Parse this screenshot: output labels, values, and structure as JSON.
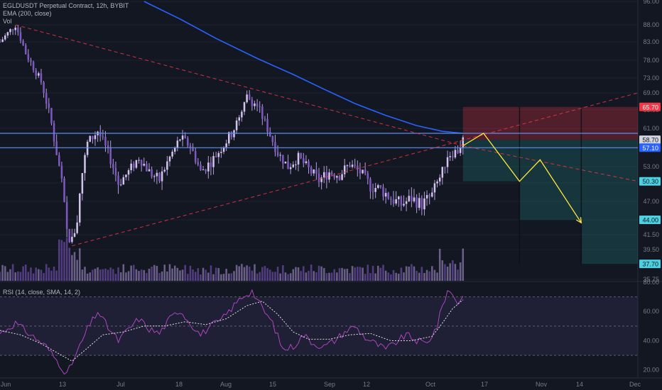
{
  "header": {
    "symbol_line": "EGLDUSDT Perpetual Contract, 12h, BYBIT",
    "ema_line": "EMA (200, close)",
    "vol_line": "Vol"
  },
  "rsi_panel": {
    "label": "RSI (14, close, SMA, 14, 2)"
  },
  "colors": {
    "background": "#131722",
    "candle": "#b39ddb",
    "ema": "#2962ff",
    "volume": "#7e57c2",
    "trendline": "#f23645",
    "level_line": "#5b8def",
    "projection": "#ffeb3b",
    "stop_zone": "#f23645",
    "target_zone": "#26a69a",
    "rsi_line": "#ab47bc",
    "rsi_sma": "#e1e1e1"
  },
  "chart_data": {
    "type": "line",
    "title": "EGLDUSDT Perpetual Contract, 12h, BYBIT",
    "x_ticks": [
      "Jun",
      "13",
      "Jul",
      "18",
      "Aug",
      "15",
      "Sep",
      "12",
      "Oct",
      "17",
      "Nov",
      "14",
      "Dec"
    ],
    "y_ticks": [
      "96.00",
      "88.00",
      "83.00",
      "78.00",
      "73.00",
      "69.00",
      "65.00",
      "61.00",
      "57.00",
      "53.00",
      "50.00",
      "47.00",
      "44.00",
      "41.50",
      "39.50",
      "35.75"
    ],
    "ylim": [
      35.75,
      96.0
    ],
    "price_badges": [
      {
        "label": "65.70",
        "value": 65.7,
        "kind": "stop"
      },
      {
        "label": "58.70",
        "value": 58.7,
        "kind": "current"
      },
      {
        "label": "57.10",
        "value": 57.1,
        "kind": "level"
      },
      {
        "label": "50.30",
        "value": 50.3,
        "kind": "target"
      },
      {
        "label": "44.00",
        "value": 44.0,
        "kind": "target"
      },
      {
        "label": "37.70",
        "value": 37.7,
        "kind": "target"
      }
    ],
    "horizontal_levels": [
      60.0,
      57.1
    ],
    "close_series": [
      {
        "x": 0,
        "y": 83.0
      },
      {
        "x": 3,
        "y": 88.0
      },
      {
        "x": 5,
        "y": 80.0
      },
      {
        "x": 8,
        "y": 72.0
      },
      {
        "x": 10,
        "y": 62.0
      },
      {
        "x": 12,
        "y": 50.0
      },
      {
        "x": 13,
        "y": 42.0
      },
      {
        "x": 14,
        "y": 40.5
      },
      {
        "x": 15,
        "y": 44.0
      },
      {
        "x": 16,
        "y": 52.0
      },
      {
        "x": 17,
        "y": 58.0
      },
      {
        "x": 19,
        "y": 60.5
      },
      {
        "x": 21,
        "y": 56.0
      },
      {
        "x": 23,
        "y": 50.0
      },
      {
        "x": 25,
        "y": 52.0
      },
      {
        "x": 27,
        "y": 55.0
      },
      {
        "x": 29,
        "y": 52.0
      },
      {
        "x": 31,
        "y": 50.5
      },
      {
        "x": 33,
        "y": 55.0
      },
      {
        "x": 35,
        "y": 59.0
      },
      {
        "x": 37,
        "y": 57.5
      },
      {
        "x": 39,
        "y": 52.0
      },
      {
        "x": 41,
        "y": 54.0
      },
      {
        "x": 43,
        "y": 57.0
      },
      {
        "x": 45,
        "y": 60.0
      },
      {
        "x": 47,
        "y": 64.0
      },
      {
        "x": 48,
        "y": 68.0
      },
      {
        "x": 50,
        "y": 66.0
      },
      {
        "x": 52,
        "y": 61.0
      },
      {
        "x": 54,
        "y": 56.0
      },
      {
        "x": 56,
        "y": 53.0
      },
      {
        "x": 58,
        "y": 55.0
      },
      {
        "x": 60,
        "y": 52.5
      },
      {
        "x": 62,
        "y": 50.5
      },
      {
        "x": 64,
        "y": 52.0
      },
      {
        "x": 66,
        "y": 51.5
      },
      {
        "x": 68,
        "y": 53.5
      },
      {
        "x": 70,
        "y": 52.0
      },
      {
        "x": 72,
        "y": 49.5
      },
      {
        "x": 74,
        "y": 49.0
      },
      {
        "x": 76,
        "y": 47.5
      },
      {
        "x": 78,
        "y": 46.5
      },
      {
        "x": 80,
        "y": 47.5
      },
      {
        "x": 82,
        "y": 46.5
      },
      {
        "x": 84,
        "y": 48.0
      },
      {
        "x": 86,
        "y": 52.0
      },
      {
        "x": 87,
        "y": 55.5
      },
      {
        "x": 89,
        "y": 56.5
      },
      {
        "x": 90,
        "y": 58.7
      }
    ],
    "ema_series": [
      {
        "x": 28,
        "y": 96.0
      },
      {
        "x": 35,
        "y": 90.0
      },
      {
        "x": 42,
        "y": 84.0
      },
      {
        "x": 50,
        "y": 78.5
      },
      {
        "x": 57,
        "y": 74.0
      },
      {
        "x": 63,
        "y": 70.0
      },
      {
        "x": 69,
        "y": 66.5
      },
      {
        "x": 75,
        "y": 63.8
      },
      {
        "x": 81,
        "y": 61.6
      },
      {
        "x": 86,
        "y": 60.4
      },
      {
        "x": 90,
        "y": 60.0
      }
    ],
    "trendlines": [
      {
        "style": "dashed",
        "from": {
          "x": 3,
          "y": 88.0
        },
        "to": {
          "x": 90,
          "y": 57.5
        }
      },
      {
        "style": "dashed",
        "from": {
          "x": 90,
          "y": 57.5
        },
        "to": {
          "x": 124,
          "y": 50.3
        }
      },
      {
        "style": "dashed",
        "from": {
          "x": 14,
          "y": 40.0
        },
        "to": {
          "x": 124,
          "y": 69.0
        }
      }
    ],
    "projection_path": [
      {
        "x": 90,
        "y": 57.5
      },
      {
        "x": 94,
        "y": 60.0
      },
      {
        "x": 101,
        "y": 50.3
      },
      {
        "x": 105,
        "y": 54.5
      },
      {
        "x": 113,
        "y": 43.5
      }
    ],
    "zones": [
      {
        "kind": "stop",
        "x0": 90,
        "x1": 124,
        "y0": 58.7,
        "y1": 65.7
      },
      {
        "kind": "target",
        "x0": 90,
        "x1": 101,
        "y0": 50.3,
        "y1": 58.7
      },
      {
        "kind": "target",
        "x0": 101,
        "x1": 113,
        "y0": 44.0,
        "y1": 58.7
      },
      {
        "kind": "target",
        "x0": 113,
        "x1": 124,
        "y0": 37.7,
        "y1": 58.7
      }
    ],
    "x_max": 124,
    "rsi": {
      "ylim": [
        15,
        80
      ],
      "y_ticks": [
        "80.00",
        "60.00",
        "40.00",
        "20.00"
      ],
      "bands": [
        30,
        50,
        70
      ],
      "rsi_series": [
        {
          "x": 0,
          "y": 45
        },
        {
          "x": 3,
          "y": 52
        },
        {
          "x": 6,
          "y": 44
        },
        {
          "x": 9,
          "y": 36
        },
        {
          "x": 12,
          "y": 22
        },
        {
          "x": 13,
          "y": 17
        },
        {
          "x": 15,
          "y": 32
        },
        {
          "x": 17,
          "y": 48
        },
        {
          "x": 19,
          "y": 60
        },
        {
          "x": 21,
          "y": 49
        },
        {
          "x": 23,
          "y": 40
        },
        {
          "x": 25,
          "y": 48
        },
        {
          "x": 27,
          "y": 55
        },
        {
          "x": 29,
          "y": 48
        },
        {
          "x": 31,
          "y": 45
        },
        {
          "x": 33,
          "y": 55
        },
        {
          "x": 35,
          "y": 61
        },
        {
          "x": 37,
          "y": 52
        },
        {
          "x": 39,
          "y": 44
        },
        {
          "x": 41,
          "y": 50
        },
        {
          "x": 43,
          "y": 54
        },
        {
          "x": 45,
          "y": 62
        },
        {
          "x": 47,
          "y": 70
        },
        {
          "x": 49,
          "y": 74
        },
        {
          "x": 51,
          "y": 62
        },
        {
          "x": 53,
          "y": 52
        },
        {
          "x": 55,
          "y": 34
        },
        {
          "x": 57,
          "y": 36
        },
        {
          "x": 59,
          "y": 44
        },
        {
          "x": 61,
          "y": 38
        },
        {
          "x": 63,
          "y": 36
        },
        {
          "x": 65,
          "y": 40
        },
        {
          "x": 67,
          "y": 46
        },
        {
          "x": 69,
          "y": 50
        },
        {
          "x": 71,
          "y": 42
        },
        {
          "x": 73,
          "y": 38
        },
        {
          "x": 75,
          "y": 34
        },
        {
          "x": 77,
          "y": 39
        },
        {
          "x": 79,
          "y": 44
        },
        {
          "x": 81,
          "y": 40
        },
        {
          "x": 83,
          "y": 38
        },
        {
          "x": 85,
          "y": 50
        },
        {
          "x": 86,
          "y": 64
        },
        {
          "x": 87,
          "y": 74
        },
        {
          "x": 88,
          "y": 72
        },
        {
          "x": 89,
          "y": 66
        },
        {
          "x": 90,
          "y": 70
        }
      ],
      "sma_series": [
        {
          "x": 0,
          "y": 47
        },
        {
          "x": 4,
          "y": 44
        },
        {
          "x": 8,
          "y": 38
        },
        {
          "x": 12,
          "y": 30
        },
        {
          "x": 14,
          "y": 26
        },
        {
          "x": 17,
          "y": 35
        },
        {
          "x": 20,
          "y": 44
        },
        {
          "x": 24,
          "y": 46
        },
        {
          "x": 28,
          "y": 50
        },
        {
          "x": 32,
          "y": 50
        },
        {
          "x": 36,
          "y": 53
        },
        {
          "x": 40,
          "y": 51
        },
        {
          "x": 44,
          "y": 55
        },
        {
          "x": 48,
          "y": 64
        },
        {
          "x": 51,
          "y": 67
        },
        {
          "x": 54,
          "y": 58
        },
        {
          "x": 57,
          "y": 46
        },
        {
          "x": 60,
          "y": 41
        },
        {
          "x": 64,
          "y": 41
        },
        {
          "x": 68,
          "y": 44
        },
        {
          "x": 72,
          "y": 45
        },
        {
          "x": 76,
          "y": 40
        },
        {
          "x": 80,
          "y": 40
        },
        {
          "x": 84,
          "y": 43
        },
        {
          "x": 86,
          "y": 52
        },
        {
          "x": 88,
          "y": 62
        },
        {
          "x": 90,
          "y": 68
        }
      ]
    }
  }
}
